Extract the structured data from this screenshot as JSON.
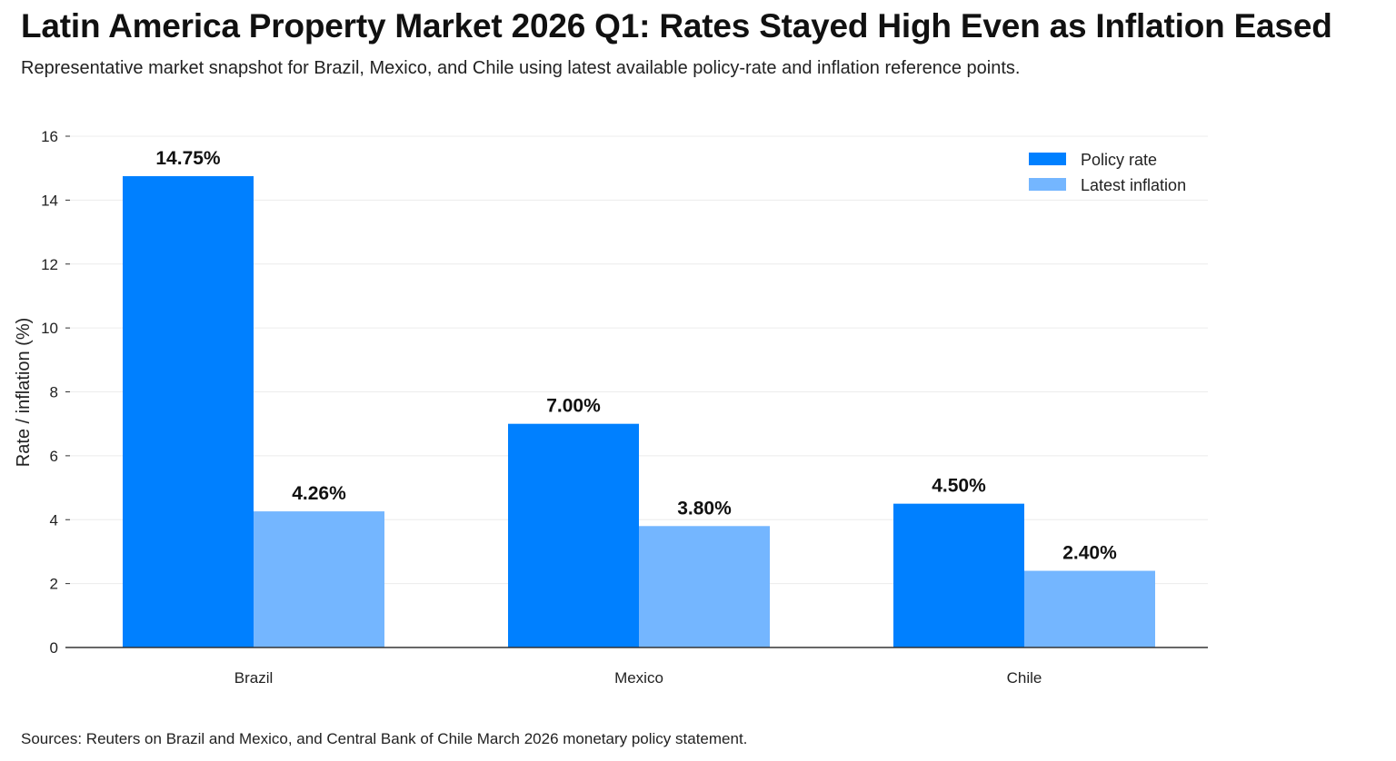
{
  "chart_data": {
    "type": "bar",
    "title": "Latin America Property Market 2026 Q1: Rates Stayed High Even as Inflation Eased",
    "subtitle": "Representative market snapshot for Brazil, Mexico, and Chile using latest available policy-rate and inflation reference points.",
    "xlabel": "",
    "ylabel": "Rate / inflation (%)",
    "ylim": [
      0,
      16
    ],
    "yticks": [
      0,
      2,
      4,
      6,
      8,
      10,
      12,
      14,
      16
    ],
    "categories": [
      "Brazil",
      "Mexico",
      "Chile"
    ],
    "series": [
      {
        "name": "Policy rate",
        "values": [
          14.75,
          7.0,
          4.5
        ],
        "labels": [
          "14.75%",
          "7.00%",
          "4.50%"
        ],
        "color": "#0080ff"
      },
      {
        "name": "Latest inflation",
        "values": [
          4.26,
          3.8,
          2.4
        ],
        "labels": [
          "4.26%",
          "3.80%",
          "2.40%"
        ],
        "color": "#74b6ff"
      }
    ],
    "grid": true,
    "legend_position": "top-right",
    "source": "Sources: Reuters on Brazil and Mexico, and Central Bank of Chile March 2026 monetary policy statement."
  }
}
